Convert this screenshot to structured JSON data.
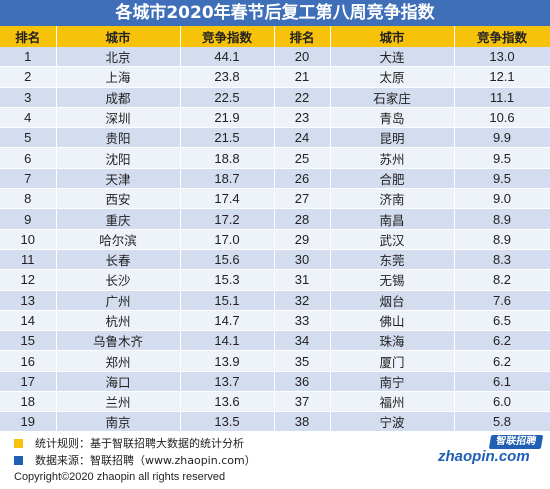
{
  "title": "各城市2020年春节后复工第八周竞争指数",
  "headers": [
    "排名",
    "城市",
    "竞争指数",
    "排名",
    "城市",
    "竞争指数"
  ],
  "left_rows": [
    {
      "rank": "1",
      "city": "北京",
      "value": "44.1"
    },
    {
      "rank": "2",
      "city": "上海",
      "value": "23.8"
    },
    {
      "rank": "3",
      "city": "成都",
      "value": "22.5"
    },
    {
      "rank": "4",
      "city": "深圳",
      "value": "21.9"
    },
    {
      "rank": "5",
      "city": "贵阳",
      "value": "21.5"
    },
    {
      "rank": "6",
      "city": "沈阳",
      "value": "18.8"
    },
    {
      "rank": "7",
      "city": "天津",
      "value": "18.7"
    },
    {
      "rank": "8",
      "city": "西安",
      "value": "17.4"
    },
    {
      "rank": "9",
      "city": "重庆",
      "value": "17.2"
    },
    {
      "rank": "10",
      "city": "哈尔滨",
      "value": "17.0"
    },
    {
      "rank": "11",
      "city": "长春",
      "value": "15.6"
    },
    {
      "rank": "12",
      "city": "长沙",
      "value": "15.3"
    },
    {
      "rank": "13",
      "city": "广州",
      "value": "15.1"
    },
    {
      "rank": "14",
      "city": "杭州",
      "value": "14.7"
    },
    {
      "rank": "15",
      "city": "乌鲁木齐",
      "value": "14.1"
    },
    {
      "rank": "16",
      "city": "郑州",
      "value": "13.9"
    },
    {
      "rank": "17",
      "city": "海口",
      "value": "13.7"
    },
    {
      "rank": "18",
      "city": "兰州",
      "value": "13.6"
    },
    {
      "rank": "19",
      "city": "南京",
      "value": "13.5"
    }
  ],
  "right_rows": [
    {
      "rank": "20",
      "city": "大连",
      "value": "13.0"
    },
    {
      "rank": "21",
      "city": "太原",
      "value": "12.1"
    },
    {
      "rank": "22",
      "city": "石家庄",
      "value": "11.1"
    },
    {
      "rank": "23",
      "city": "青岛",
      "value": "10.6"
    },
    {
      "rank": "24",
      "city": "昆明",
      "value": "9.9"
    },
    {
      "rank": "25",
      "city": "苏州",
      "value": "9.5"
    },
    {
      "rank": "26",
      "city": "合肥",
      "value": "9.5"
    },
    {
      "rank": "27",
      "city": "济南",
      "value": "9.0"
    },
    {
      "rank": "28",
      "city": "南昌",
      "value": "8.9"
    },
    {
      "rank": "29",
      "city": "武汉",
      "value": "8.9"
    },
    {
      "rank": "30",
      "city": "东莞",
      "value": "8.3"
    },
    {
      "rank": "31",
      "city": "无锡",
      "value": "8.2"
    },
    {
      "rank": "32",
      "city": "烟台",
      "value": "7.6"
    },
    {
      "rank": "33",
      "city": "佛山",
      "value": "6.5"
    },
    {
      "rank": "34",
      "city": "珠海",
      "value": "6.2"
    },
    {
      "rank": "35",
      "city": "厦门",
      "value": "6.2"
    },
    {
      "rank": "36",
      "city": "南宁",
      "value": "6.1"
    },
    {
      "rank": "37",
      "city": "福州",
      "value": "6.0"
    },
    {
      "rank": "38",
      "city": "宁波",
      "value": "5.8"
    }
  ],
  "footer": {
    "note_rule": "统计规则：基于智联招聘大数据的统计分析",
    "note_source": "数据来源：智联招聘（www.zhaopin.com）",
    "copyright": "Copyright©2020 zhaopin all rights reserved",
    "logo_cn": "智联招聘",
    "logo_en": "zhaopin.com"
  },
  "colors": {
    "title_bg": "#3e6fb8",
    "header_bg": "#f7c20a",
    "row_dark": "#d4ddef",
    "row_light": "#eef2f9",
    "rule_marker": "#f7c20a",
    "source_marker": "#1f5fb4"
  }
}
